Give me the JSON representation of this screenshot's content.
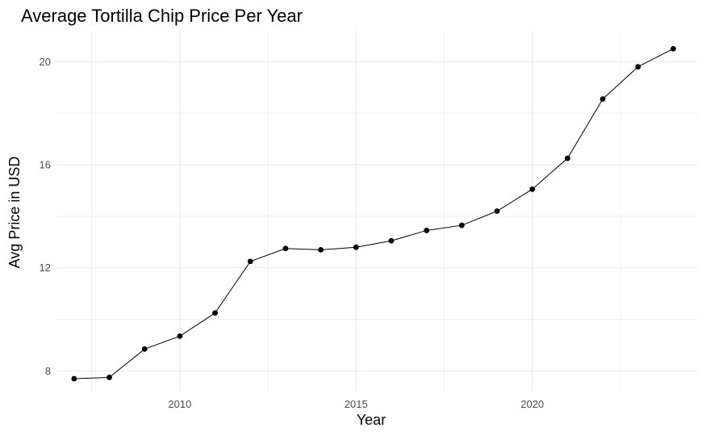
{
  "chart_data": {
    "type": "line",
    "title": "Average Tortilla Chip Price Per Year",
    "xlabel": "Year",
    "ylabel": "Avg Price in USD",
    "x": [
      2007,
      2008,
      2009,
      2010,
      2011,
      2012,
      2013,
      2014,
      2015,
      2016,
      2017,
      2018,
      2019,
      2020,
      2021,
      2022,
      2023,
      2024
    ],
    "series": [
      {
        "values": [
          7.7,
          7.75,
          8.85,
          9.35,
          10.25,
          12.25,
          12.75,
          12.7,
          12.8,
          13.05,
          13.45,
          13.65,
          14.2,
          15.05,
          16.25,
          18.55,
          19.8,
          20.5
        ]
      }
    ],
    "xlim": [
      2006.5,
      2024.7
    ],
    "ylim": [
      7.2,
      21.2
    ],
    "x_ticks": [
      2010,
      2015,
      2020
    ],
    "y_ticks": [
      8,
      12,
      16,
      20
    ],
    "grid": true,
    "colors": {
      "line": "#000000",
      "point": "#000000",
      "grid": "#ebebeb",
      "background": "#ffffff"
    }
  }
}
